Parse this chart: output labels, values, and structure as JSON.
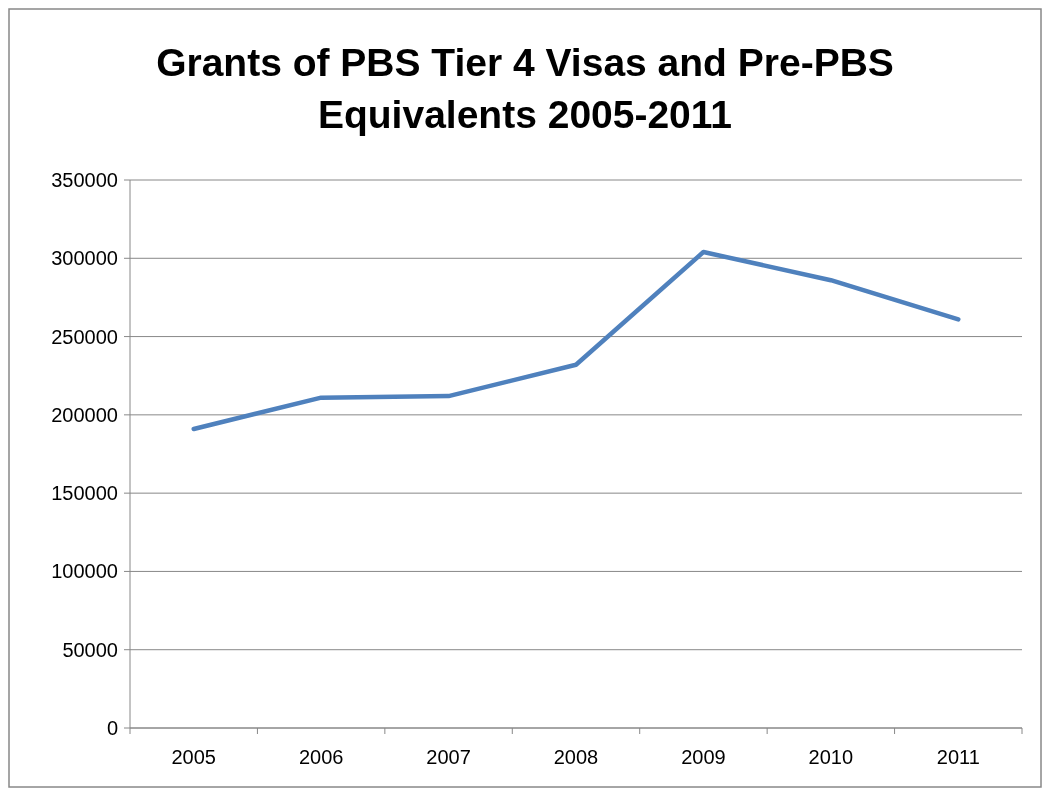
{
  "chart_data": {
    "type": "line",
    "title": "Grants of PBS Tier 4 Visas and Pre-PBS Equivalents 2005-2011",
    "categories": [
      "2005",
      "2006",
      "2007",
      "2008",
      "2009",
      "2010",
      "2011"
    ],
    "series": [
      {
        "color": "#4f81bd",
        "values": [
          191000,
          211000,
          212000,
          232000,
          304000,
          286000,
          261000
        ]
      }
    ],
    "ylim": [
      0,
      350000
    ],
    "yticks": [
      0,
      50000,
      100000,
      150000,
      200000,
      250000,
      300000,
      350000
    ],
    "grid": "y",
    "marker": "none",
    "line_style": "solid"
  }
}
